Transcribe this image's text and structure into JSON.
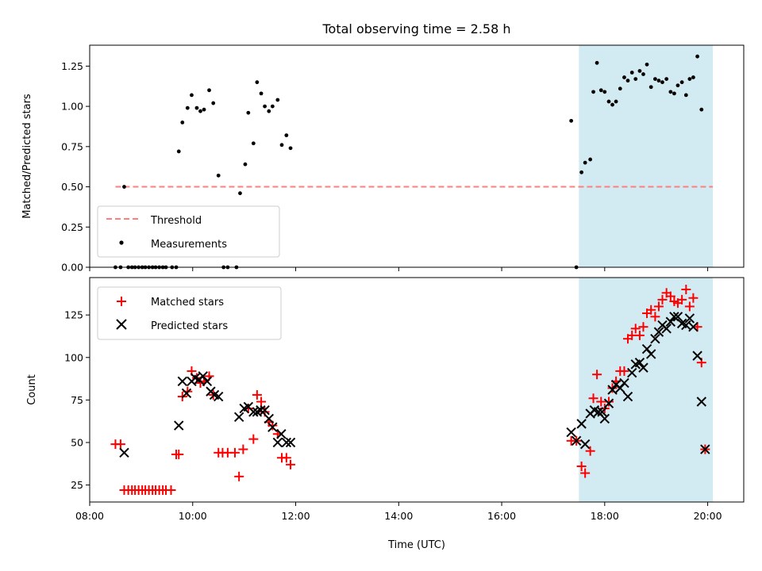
{
  "chart_data": [
    {
      "type": "scatter",
      "title": "Total observing time = 2.58 h",
      "ylabel": "Matched/Predicted stars",
      "xlabel": "",
      "ylim": [
        0,
        1.38
      ],
      "yticks": [
        "0.00",
        "0.25",
        "0.50",
        "0.75",
        "1.00",
        "1.25"
      ],
      "grid": false,
      "legend": "lower-left",
      "shaded_span": {
        "x_start": 17.5,
        "x_end": 20.1,
        "color": "#add8e6"
      },
      "threshold": {
        "name": "Threshold",
        "y": 0.5,
        "x_start": 8.5,
        "x_end": 20.1,
        "color": "#ff7f7f"
      },
      "series": [
        {
          "name": "Measurements",
          "color": "#000000",
          "points": [
            [
              8.5,
              0
            ],
            [
              8.6,
              0
            ],
            [
              8.67,
              0.5
            ],
            [
              8.75,
              0
            ],
            [
              8.82,
              0
            ],
            [
              8.88,
              0
            ],
            [
              8.95,
              0
            ],
            [
              9.02,
              0
            ],
            [
              9.08,
              0
            ],
            [
              9.15,
              0
            ],
            [
              9.22,
              0
            ],
            [
              9.28,
              0
            ],
            [
              9.35,
              0
            ],
            [
              9.42,
              0
            ],
            [
              9.48,
              0
            ],
            [
              9.6,
              0
            ],
            [
              9.68,
              0
            ],
            [
              9.73,
              0.72
            ],
            [
              9.8,
              0.9
            ],
            [
              9.9,
              0.99
            ],
            [
              9.98,
              1.07
            ],
            [
              10.08,
              0.99
            ],
            [
              10.15,
              0.97
            ],
            [
              10.22,
              0.98
            ],
            [
              10.32,
              1.1
            ],
            [
              10.4,
              1.02
            ],
            [
              10.5,
              0.57
            ],
            [
              10.6,
              0
            ],
            [
              10.68,
              0
            ],
            [
              10.85,
              0
            ],
            [
              10.92,
              0.46
            ],
            [
              11.02,
              0.64
            ],
            [
              11.08,
              0.96
            ],
            [
              11.18,
              0.77
            ],
            [
              11.25,
              1.15
            ],
            [
              11.33,
              1.08
            ],
            [
              11.4,
              1.0
            ],
            [
              11.48,
              0.97
            ],
            [
              11.55,
              1.0
            ],
            [
              11.65,
              1.04
            ],
            [
              11.73,
              0.76
            ],
            [
              11.82,
              0.82
            ],
            [
              11.9,
              0.74
            ],
            [
              17.35,
              0.91
            ],
            [
              17.45,
              0
            ],
            [
              17.55,
              0.59
            ],
            [
              17.62,
              0.65
            ],
            [
              17.72,
              0.67
            ],
            [
              17.78,
              1.09
            ],
            [
              17.85,
              1.27
            ],
            [
              17.93,
              1.1
            ],
            [
              18.0,
              1.09
            ],
            [
              18.08,
              1.03
            ],
            [
              18.15,
              1.01
            ],
            [
              18.22,
              1.03
            ],
            [
              18.3,
              1.11
            ],
            [
              18.38,
              1.18
            ],
            [
              18.45,
              1.16
            ],
            [
              18.53,
              1.21
            ],
            [
              18.6,
              1.17
            ],
            [
              18.68,
              1.22
            ],
            [
              18.75,
              1.2
            ],
            [
              18.82,
              1.26
            ],
            [
              18.9,
              1.12
            ],
            [
              18.98,
              1.17
            ],
            [
              19.05,
              1.16
            ],
            [
              19.12,
              1.15
            ],
            [
              19.2,
              1.17
            ],
            [
              19.28,
              1.09
            ],
            [
              19.35,
              1.08
            ],
            [
              19.42,
              1.13
            ],
            [
              19.5,
              1.15
            ],
            [
              19.58,
              1.07
            ],
            [
              19.65,
              1.17
            ],
            [
              19.72,
              1.18
            ],
            [
              19.8,
              1.31
            ],
            [
              19.88,
              0.98
            ]
          ]
        }
      ]
    },
    {
      "type": "scatter",
      "title": "",
      "ylabel": "Count",
      "xlabel": "Time (UTC)",
      "xlim": [
        8.0,
        20.7
      ],
      "xticks": [
        "08:00",
        "10:00",
        "12:00",
        "14:00",
        "16:00",
        "18:00",
        "20:00"
      ],
      "ylim": [
        15,
        147
      ],
      "yticks": [
        "25",
        "50",
        "75",
        "100",
        "125"
      ],
      "grid": false,
      "legend": "upper-left",
      "shaded_span": {
        "x_start": 17.5,
        "x_end": 20.1,
        "color": "#add8e6"
      },
      "series": [
        {
          "name": "Matched stars",
          "marker": "+",
          "color": "#ff0000",
          "points": [
            [
              8.5,
              49
            ],
            [
              8.6,
              49
            ],
            [
              8.67,
              22
            ],
            [
              8.75,
              22
            ],
            [
              8.82,
              22
            ],
            [
              8.88,
              22
            ],
            [
              8.95,
              22
            ],
            [
              9.02,
              22
            ],
            [
              9.08,
              22
            ],
            [
              9.15,
              22
            ],
            [
              9.22,
              22
            ],
            [
              9.28,
              22
            ],
            [
              9.35,
              22
            ],
            [
              9.42,
              22
            ],
            [
              9.48,
              22
            ],
            [
              9.58,
              22
            ],
            [
              9.68,
              43
            ],
            [
              9.73,
              43
            ],
            [
              9.8,
              77
            ],
            [
              9.9,
              80
            ],
            [
              9.98,
              92
            ],
            [
              10.08,
              88
            ],
            [
              10.15,
              85
            ],
            [
              10.22,
              86
            ],
            [
              10.32,
              89
            ],
            [
              10.4,
              78
            ],
            [
              10.5,
              44
            ],
            [
              10.58,
              44
            ],
            [
              10.68,
              44
            ],
            [
              10.82,
              44
            ],
            [
              10.9,
              30
            ],
            [
              10.98,
              46
            ],
            [
              11.08,
              70
            ],
            [
              11.18,
              52
            ],
            [
              11.25,
              78
            ],
            [
              11.33,
              74
            ],
            [
              11.4,
              68
            ],
            [
              11.48,
              62
            ],
            [
              11.55,
              60
            ],
            [
              11.65,
              55
            ],
            [
              11.73,
              41
            ],
            [
              11.82,
              41
            ],
            [
              11.9,
              37
            ],
            [
              17.35,
              51
            ],
            [
              17.45,
              51
            ],
            [
              17.55,
              36
            ],
            [
              17.62,
              32
            ],
            [
              17.72,
              45
            ],
            [
              17.78,
              76
            ],
            [
              17.85,
              90
            ],
            [
              17.93,
              74
            ],
            [
              18.0,
              70
            ],
            [
              18.08,
              74
            ],
            [
              18.15,
              82
            ],
            [
              18.22,
              86
            ],
            [
              18.3,
              92
            ],
            [
              18.38,
              92
            ],
            [
              18.45,
              111
            ],
            [
              18.53,
              113
            ],
            [
              18.6,
              117
            ],
            [
              18.68,
              113
            ],
            [
              18.75,
              118
            ],
            [
              18.82,
              126
            ],
            [
              18.9,
              128
            ],
            [
              18.98,
              124
            ],
            [
              19.05,
              130
            ],
            [
              19.12,
              134
            ],
            [
              19.2,
              138
            ],
            [
              19.28,
              136
            ],
            [
              19.35,
              133
            ],
            [
              19.42,
              132
            ],
            [
              19.5,
              134
            ],
            [
              19.58,
              140
            ],
            [
              19.65,
              130
            ],
            [
              19.72,
              135
            ],
            [
              19.8,
              118
            ],
            [
              19.88,
              97
            ],
            [
              19.95,
              46
            ]
          ]
        },
        {
          "name": "Predicted stars",
          "marker": "x",
          "color": "#000000",
          "points": [
            [
              8.67,
              44
            ],
            [
              9.73,
              60
            ],
            [
              9.8,
              86
            ],
            [
              9.88,
              79
            ],
            [
              9.98,
              86
            ],
            [
              10.05,
              88
            ],
            [
              10.12,
              87
            ],
            [
              10.2,
              89
            ],
            [
              10.28,
              86
            ],
            [
              10.35,
              80
            ],
            [
              10.42,
              78
            ],
            [
              10.5,
              77
            ],
            [
              10.9,
              65
            ],
            [
              11.0,
              70
            ],
            [
              11.08,
              71
            ],
            [
              11.18,
              68
            ],
            [
              11.25,
              68
            ],
            [
              11.32,
              69
            ],
            [
              11.4,
              69
            ],
            [
              11.48,
              64
            ],
            [
              11.55,
              59
            ],
            [
              11.65,
              50
            ],
            [
              11.72,
              55
            ],
            [
              11.82,
              50
            ],
            [
              11.9,
              50
            ],
            [
              17.35,
              56
            ],
            [
              17.45,
              51
            ],
            [
              17.55,
              61
            ],
            [
              17.62,
              49
            ],
            [
              17.72,
              67
            ],
            [
              17.8,
              69
            ],
            [
              17.88,
              68
            ],
            [
              17.95,
              68
            ],
            [
              18.0,
              64
            ],
            [
              18.08,
              73
            ],
            [
              18.15,
              81
            ],
            [
              18.22,
              84
            ],
            [
              18.3,
              82
            ],
            [
              18.38,
              85
            ],
            [
              18.45,
              77
            ],
            [
              18.53,
              91
            ],
            [
              18.6,
              96
            ],
            [
              18.68,
              97
            ],
            [
              18.75,
              94
            ],
            [
              18.82,
              105
            ],
            [
              18.9,
              102
            ],
            [
              18.98,
              111
            ],
            [
              19.05,
              115
            ],
            [
              19.12,
              119
            ],
            [
              19.2,
              117
            ],
            [
              19.28,
              121
            ],
            [
              19.35,
              124
            ],
            [
              19.42,
              124
            ],
            [
              19.5,
              120
            ],
            [
              19.58,
              119
            ],
            [
              19.65,
              123
            ],
            [
              19.72,
              118
            ],
            [
              19.8,
              101
            ],
            [
              19.88,
              74
            ],
            [
              19.95,
              46
            ]
          ]
        }
      ]
    }
  ]
}
